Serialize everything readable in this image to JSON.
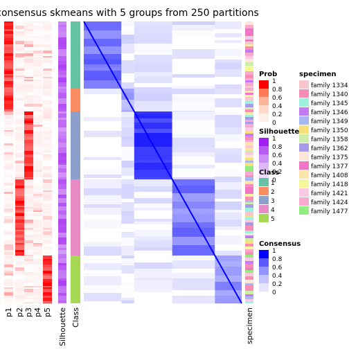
{
  "chart_data": {
    "type": "heatmap",
    "title": "consensus skmeans with 5 groups from 250 partitions",
    "column_labels": [
      "p1",
      "p2",
      "p3",
      "p4",
      "p5",
      "Silhouette",
      "Class",
      "specimen"
    ],
    "class_blocks": [
      {
        "class": "1",
        "fraction": 0.239
      },
      {
        "class": "2",
        "fraction": 0.08
      },
      {
        "class": "3",
        "fraction": 0.241
      },
      {
        "class": "4",
        "fraction": 0.271
      },
      {
        "class": "5",
        "fraction": 0.169
      }
    ],
    "consensus_within_class": {
      "1": 0.55,
      "2": 0.35,
      "3": 0.8,
      "4": 0.5,
      "5": 0.4
    },
    "legends": {
      "prob": {
        "title": "Prob",
        "ticks": [
          "1",
          "0.8",
          "0.6",
          "0.4",
          "0.2",
          "0"
        ],
        "colors": [
          "#ff0000",
          "#ff7a55",
          "#ffb49a",
          "#ffd9c9",
          "#fff0ea",
          "#ffffff"
        ]
      },
      "silhouette": {
        "title": "Silhouette",
        "ticks": [
          "1",
          "0.8",
          "0.6",
          "0.4",
          "0.2",
          "0"
        ],
        "colors": [
          "#a020f0",
          "#b65cf2",
          "#c98ff5",
          "#dcb9f8",
          "#eddcfb",
          "#ffffff"
        ]
      },
      "class": {
        "title": "Class",
        "items": [
          {
            "label": "1",
            "color": "#66c2a5"
          },
          {
            "label": "2",
            "color": "#fc8d62"
          },
          {
            "label": "3",
            "color": "#8da0cb"
          },
          {
            "label": "4",
            "color": "#e78ac3"
          },
          {
            "label": "5",
            "color": "#a6d854"
          }
        ]
      },
      "consensus": {
        "title": "Consensus",
        "ticks": [
          "1",
          "0.8",
          "0.6",
          "0.4",
          "0.2",
          "0"
        ],
        "colors": [
          "#0000ff",
          "#5a5aff",
          "#9494ff",
          "#c3c3ff",
          "#e6e6ff",
          "#ffffff"
        ]
      },
      "specimen": {
        "title": "specimen",
        "items": [
          {
            "label": "family 1334",
            "color": "#f9c6d0"
          },
          {
            "label": "family 1340",
            "color": "#f78db4"
          },
          {
            "label": "family 1345",
            "color": "#9ef0e0"
          },
          {
            "label": "family 1346",
            "color": "#c37bf4"
          },
          {
            "label": "family 1349",
            "color": "#a7b8f0"
          },
          {
            "label": "family 1350",
            "color": "#f5e07a"
          },
          {
            "label": "family 1358",
            "color": "#cdeea8"
          },
          {
            "label": "family 1362",
            "color": "#a89ce8"
          },
          {
            "label": "family 1375",
            "color": "#fde6d8"
          },
          {
            "label": "family 1377",
            "color": "#f276c6"
          },
          {
            "label": "family 1408",
            "color": "#fce5a8"
          },
          {
            "label": "family 1418",
            "color": "#f7f59a"
          },
          {
            "label": "family 1421",
            "color": "#f9c9e6"
          },
          {
            "label": "family 1424",
            "color": "#f9a9cf"
          },
          {
            "label": "family 1477",
            "color": "#93ec80"
          }
        ]
      }
    }
  }
}
